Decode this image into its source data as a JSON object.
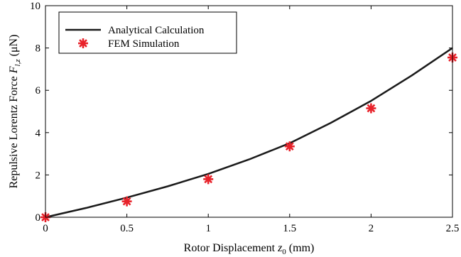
{
  "chart_data": {
    "type": "line",
    "xlabel": "Rotor Displacement z0 (mm)",
    "xlabel_parts": {
      "pre": "Rotor Displacement ",
      "var": "z",
      "sub": "0",
      "post": " (mm)"
    },
    "ylabel": "Repulsive Lorentz Force F_{l,z} (μN)",
    "ylabel_parts": {
      "pre": "Repulsive Lorentz Force ",
      "var": "F",
      "sub": "l,z",
      "post": "  (μN)"
    },
    "xlim": [
      0,
      2.5
    ],
    "ylim": [
      0,
      10
    ],
    "x_ticks": [
      "0",
      "0.5",
      "1",
      "1.5",
      "2",
      "2.5"
    ],
    "y_ticks": [
      "0",
      "2",
      "4",
      "6",
      "8",
      "10"
    ],
    "grid": false,
    "legend_position": "top-left",
    "series": [
      {
        "name": "Analytical Calculation",
        "kind": "line",
        "color": "#1a1a1a",
        "x": [
          0,
          0.25,
          0.5,
          0.75,
          1.0,
          1.25,
          1.5,
          1.75,
          2.0,
          2.25,
          2.5
        ],
        "y": [
          0,
          0.44,
          0.93,
          1.46,
          2.05,
          2.73,
          3.5,
          4.45,
          5.5,
          6.7,
          8.0
        ]
      },
      {
        "name": "FEM Simulation",
        "kind": "scatter",
        "marker": "asterisk",
        "color": "#e8222a",
        "x": [
          0,
          0.5,
          1.0,
          1.5,
          2.0,
          2.5
        ],
        "y": [
          0,
          0.75,
          1.8,
          3.35,
          5.15,
          7.55
        ]
      }
    ]
  }
}
